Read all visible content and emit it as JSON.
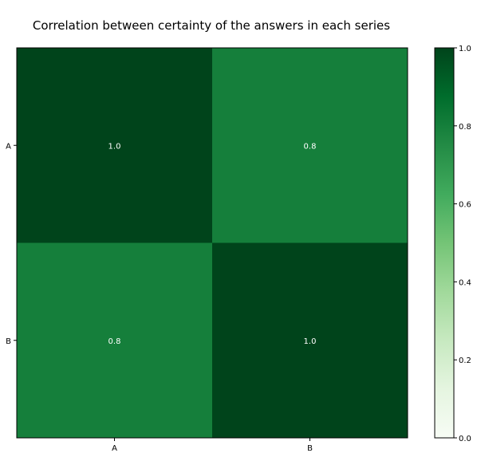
{
  "chart_data": {
    "type": "heatmap",
    "title": "Correlation between certainty of the answers in each series",
    "x_categories": [
      "A",
      "B"
    ],
    "y_categories": [
      "A",
      "B"
    ],
    "values": [
      [
        1.0,
        0.8
      ],
      [
        0.8,
        1.0
      ]
    ],
    "cell_labels": [
      [
        "1.0",
        "0.8"
      ],
      [
        "0.8",
        "1.0"
      ]
    ],
    "colormap": "Greens",
    "colorbar": {
      "range": [
        0.0,
        1.0
      ],
      "ticks": [
        "0.0",
        "0.2",
        "0.4",
        "0.6",
        "0.8",
        "1.0"
      ],
      "placement": "right"
    },
    "colors": {
      "low": "#f7fcf5",
      "high": "#00441b",
      "cell_text": "#ffffff"
    }
  }
}
